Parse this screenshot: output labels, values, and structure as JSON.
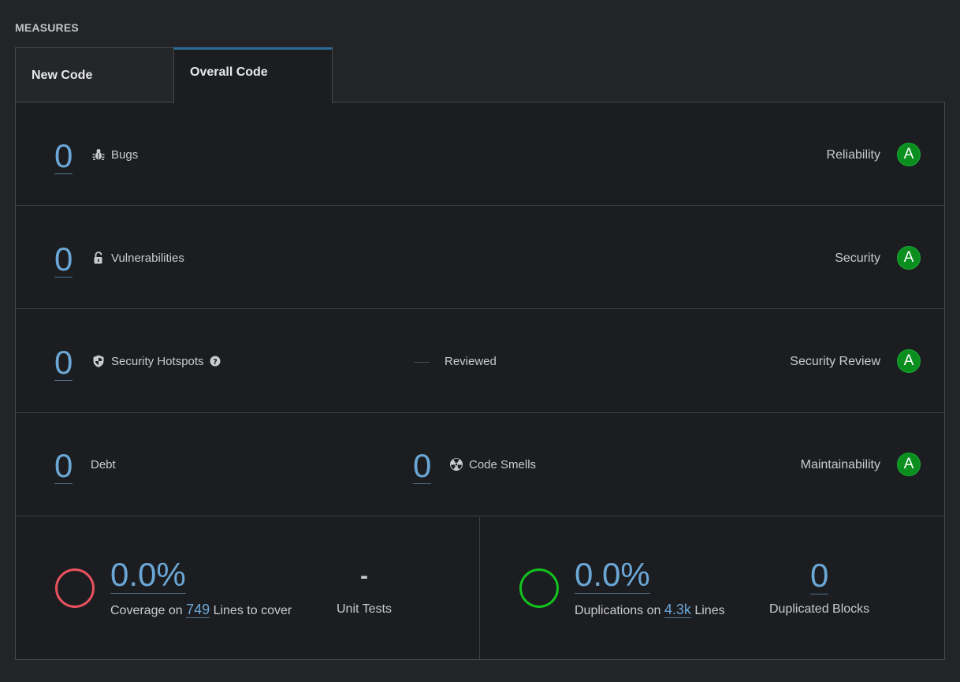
{
  "section_title": "MEASURES",
  "tabs": [
    {
      "label": "New Code",
      "active": false
    },
    {
      "label": "Overall Code",
      "active": true
    }
  ],
  "colors": {
    "accent_blue": "#6aa7d6",
    "rating_green": "#0a8f1f",
    "coverage_ring": "#e8525f",
    "duplications_ring": "#13c21c"
  },
  "rows": {
    "bugs": {
      "value": "0",
      "label": "Bugs",
      "icon": "bug-icon",
      "rating_label": "Reliability",
      "rating": "A"
    },
    "vulnerabilities": {
      "value": "0",
      "label": "Vulnerabilities",
      "icon": "lock-open-icon",
      "rating_label": "Security",
      "rating": "A"
    },
    "hotspots": {
      "value": "0",
      "label": "Security Hotspots",
      "icon": "shield-icon",
      "help_icon": "help-icon",
      "reviewed_label": "Reviewed",
      "rating_label": "Security Review",
      "rating": "A"
    },
    "maintainability": {
      "debt_value": "0",
      "debt_label": "Debt",
      "smells_value": "0",
      "smells_label": "Code Smells",
      "smells_icon": "radiation-icon",
      "rating_label": "Maintainability",
      "rating": "A"
    }
  },
  "coverage": {
    "value": "0.0%",
    "prefix": "Coverage on",
    "lines": "749",
    "suffix": "Lines to cover",
    "unit_tests_value": "-",
    "unit_tests_label": "Unit Tests"
  },
  "duplications": {
    "value": "0.0%",
    "prefix": "Duplications on",
    "lines": "4.3k",
    "suffix": "Lines",
    "blocks_value": "0",
    "blocks_label": "Duplicated Blocks"
  }
}
